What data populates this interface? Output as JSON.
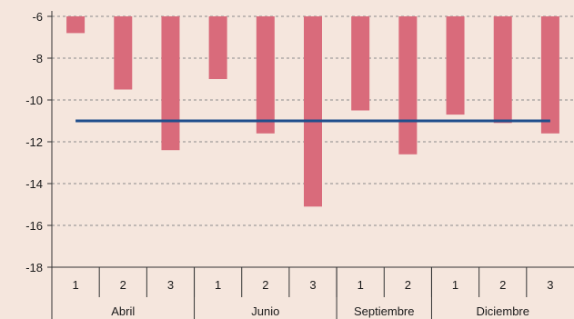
{
  "chart_data": {
    "type": "bar",
    "title": "",
    "xlabel": "",
    "ylabel": "",
    "ylim": [
      -18,
      -6
    ],
    "yticks": [
      -6,
      -8,
      -10,
      -12,
      -14,
      -16,
      -18
    ],
    "y_tick_labels": [
      "-6",
      "-8",
      "-10",
      "-12",
      "-14",
      "-16",
      "-18"
    ],
    "bar_baseline": -6,
    "grid": "horizontal dashed",
    "categories": [
      "1",
      "2",
      "3",
      "1",
      "2",
      "3",
      "1",
      "2",
      "1",
      "2",
      "3"
    ],
    "groups": [
      {
        "label": "Abril",
        "count": 3
      },
      {
        "label": "Junio",
        "count": 3
      },
      {
        "label": "Septiembre",
        "count": 2
      },
      {
        "label": "Diciembre",
        "count": 3
      }
    ],
    "series": [
      {
        "type": "bar",
        "color": "#d96b7b",
        "values": [
          -6.8,
          -9.5,
          -12.4,
          -9.0,
          -11.6,
          -15.1,
          -10.5,
          -12.6,
          -10.7,
          -11.1,
          -11.6
        ]
      },
      {
        "type": "line",
        "color": "#1f4e8c",
        "values": [
          -11.0,
          -11.0,
          -11.0,
          -11.0,
          -11.0,
          -11.0,
          -11.0,
          -11.0,
          -11.0,
          -11.0,
          -11.0
        ]
      }
    ],
    "colors": {
      "background": "#f5e6dd",
      "bar": "#d96b7b",
      "line": "#1f4e8c",
      "grid": "#8a8a8a"
    }
  }
}
